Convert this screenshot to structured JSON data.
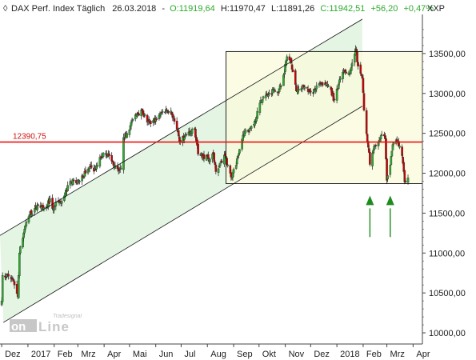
{
  "header": {
    "instrument": "DAX Perf. Index Täglich",
    "date": "26.03.2018",
    "open_text": "O:11919,64",
    "high_text": "H:11970,47",
    "low_text": "L:11891,26",
    "close_text": "C:11942,51",
    "change_text": "+56,20",
    "change_pct_text": "+0,47%",
    "symbol": "XXP"
  },
  "logo": {
    "brand_top": "Tradesignal",
    "brand_left": "on",
    "brand_right": "Line"
  },
  "colors": {
    "up": "#2eaa2e",
    "down": "#cc0000",
    "level_line": "#ee1111",
    "channel_fill": "#e4f5e4",
    "range_fill": "#fbfbdc",
    "arrow": "#1e8c1e"
  },
  "chart_data": {
    "type": "candlestick",
    "x_labels": [
      "Dez",
      "2017",
      "Feb",
      "Mrz",
      "Apr",
      "Mai",
      "Jun",
      "Jul",
      "Aug",
      "Sep",
      "Okt",
      "Nov",
      "Dez",
      "2018",
      "Feb",
      "Mrz",
      "Apr"
    ],
    "y_ticks": [
      {
        "value": 10000,
        "label": "10000,00"
      },
      {
        "value": 10500,
        "label": "10500,00"
      },
      {
        "value": 11000,
        "label": "11000,00"
      },
      {
        "value": 11500,
        "label": "11500,00"
      },
      {
        "value": 12000,
        "label": "12000,00"
      },
      {
        "value": 12500,
        "label": "12500,00"
      },
      {
        "value": 13000,
        "label": "13000,00"
      },
      {
        "value": 13500,
        "label": "13500,00"
      }
    ],
    "ylim": [
      9860,
      13930
    ],
    "x_start": "2016-11-29",
    "x_end": "2018-04-12",
    "level": {
      "value": 12390.75,
      "label": "12390,75"
    },
    "range_box": {
      "start": "2017-08-23",
      "end": "2018-04-12",
      "low": 11870,
      "high": 13525
    },
    "channel": {
      "upper": [
        [
          "2016-11-29",
          11220
        ],
        [
          "2018-01-31",
          13930
        ]
      ],
      "lower": [
        [
          "2016-12-03",
          10130
        ],
        [
          "2018-01-31",
          12840
        ]
      ]
    },
    "arrows": [
      "2018-02-09",
      "2018-03-05"
    ],
    "closes": [
      [
        "2016-12-01",
        10400
      ],
      [
        "2016-12-02",
        10720
      ],
      [
        "2016-12-05",
        10700
      ],
      [
        "2016-12-06",
        10690
      ],
      [
        "2016-12-07",
        10730
      ],
      [
        "2016-12-09",
        10710
      ],
      [
        "2016-12-12",
        10680
      ],
      [
        "2016-12-13",
        10670
      ],
      [
        "2016-12-16",
        10600
      ],
      [
        "2016-12-20",
        10450
      ],
      [
        "2016-12-22",
        11000
      ],
      [
        "2016-12-28",
        11300
      ],
      [
        "2017-01-03",
        11480
      ],
      [
        "2017-01-09",
        11560
      ],
      [
        "2017-01-13",
        11600
      ],
      [
        "2017-01-18",
        11580
      ],
      [
        "2017-01-24",
        11600
      ],
      [
        "2017-01-27",
        11680
      ],
      [
        "2017-01-31",
        11540
      ],
      [
        "2017-02-03",
        11640
      ],
      [
        "2017-02-09",
        11620
      ],
      [
        "2017-02-15",
        11780
      ],
      [
        "2017-02-21",
        11900
      ],
      [
        "2017-02-28",
        11880
      ],
      [
        "2017-03-06",
        11970
      ],
      [
        "2017-03-10",
        12000
      ],
      [
        "2017-03-16",
        12080
      ],
      [
        "2017-03-22",
        12040
      ],
      [
        "2017-03-28",
        12200
      ],
      [
        "2017-04-03",
        12250
      ],
      [
        "2017-04-07",
        12220
      ],
      [
        "2017-04-12",
        12100
      ],
      [
        "2017-04-18",
        12030
      ],
      [
        "2017-04-21",
        12060
      ],
      [
        "2017-04-24",
        12450
      ],
      [
        "2017-04-28",
        12500
      ],
      [
        "2017-05-04",
        12650
      ],
      [
        "2017-05-10",
        12750
      ],
      [
        "2017-05-16",
        12780
      ],
      [
        "2017-05-22",
        12640
      ],
      [
        "2017-05-26",
        12620
      ],
      [
        "2017-06-01",
        12680
      ],
      [
        "2017-06-07",
        12750
      ],
      [
        "2017-06-13",
        12800
      ],
      [
        "2017-06-19",
        12780
      ],
      [
        "2017-06-23",
        12650
      ],
      [
        "2017-06-29",
        12400
      ],
      [
        "2017-07-05",
        12450
      ],
      [
        "2017-07-11",
        12500
      ],
      [
        "2017-07-17",
        12560
      ],
      [
        "2017-07-21",
        12240
      ],
      [
        "2017-07-27",
        12220
      ],
      [
        "2017-08-02",
        12180
      ],
      [
        "2017-08-08",
        12240
      ],
      [
        "2017-08-11",
        12020
      ],
      [
        "2017-08-17",
        12150
      ],
      [
        "2017-08-22",
        12220
      ],
      [
        "2017-08-29",
        11950
      ],
      [
        "2017-09-04",
        12100
      ],
      [
        "2017-09-08",
        12300
      ],
      [
        "2017-09-14",
        12520
      ],
      [
        "2017-09-20",
        12560
      ],
      [
        "2017-09-26",
        12650
      ],
      [
        "2017-10-02",
        12880
      ],
      [
        "2017-10-06",
        12960
      ],
      [
        "2017-10-12",
        12980
      ],
      [
        "2017-10-18",
        13050
      ],
      [
        "2017-10-24",
        13010
      ],
      [
        "2017-10-30",
        13230
      ],
      [
        "2017-11-03",
        13460
      ],
      [
        "2017-11-08",
        13380
      ],
      [
        "2017-11-14",
        13030
      ],
      [
        "2017-11-20",
        13060
      ],
      [
        "2017-11-24",
        13080
      ],
      [
        "2017-11-30",
        13020
      ],
      [
        "2017-12-05",
        13050
      ],
      [
        "2017-12-11",
        13120
      ],
      [
        "2017-12-15",
        13100
      ],
      [
        "2017-12-21",
        13110
      ],
      [
        "2017-12-29",
        12920
      ],
      [
        "2018-01-04",
        13170
      ],
      [
        "2018-01-10",
        13280
      ],
      [
        "2018-01-16",
        13240
      ],
      [
        "2018-01-23",
        13560
      ],
      [
        "2018-01-26",
        13340
      ],
      [
        "2018-01-31",
        13190
      ],
      [
        "2018-02-02",
        12790
      ],
      [
        "2018-02-06",
        12390
      ],
      [
        "2018-02-08",
        12260
      ],
      [
        "2018-02-09",
        12110
      ],
      [
        "2018-02-14",
        12340
      ],
      [
        "2018-02-19",
        12380
      ],
      [
        "2018-02-23",
        12480
      ],
      [
        "2018-02-27",
        12430
      ],
      [
        "2018-03-01",
        11910
      ],
      [
        "2018-03-05",
        12100
      ],
      [
        "2018-03-08",
        12360
      ],
      [
        "2018-03-12",
        12420
      ],
      [
        "2018-03-15",
        12340
      ],
      [
        "2018-03-19",
        12220
      ],
      [
        "2018-03-22",
        11890
      ],
      [
        "2018-03-23",
        11890
      ],
      [
        "2018-03-26",
        11942
      ]
    ]
  }
}
